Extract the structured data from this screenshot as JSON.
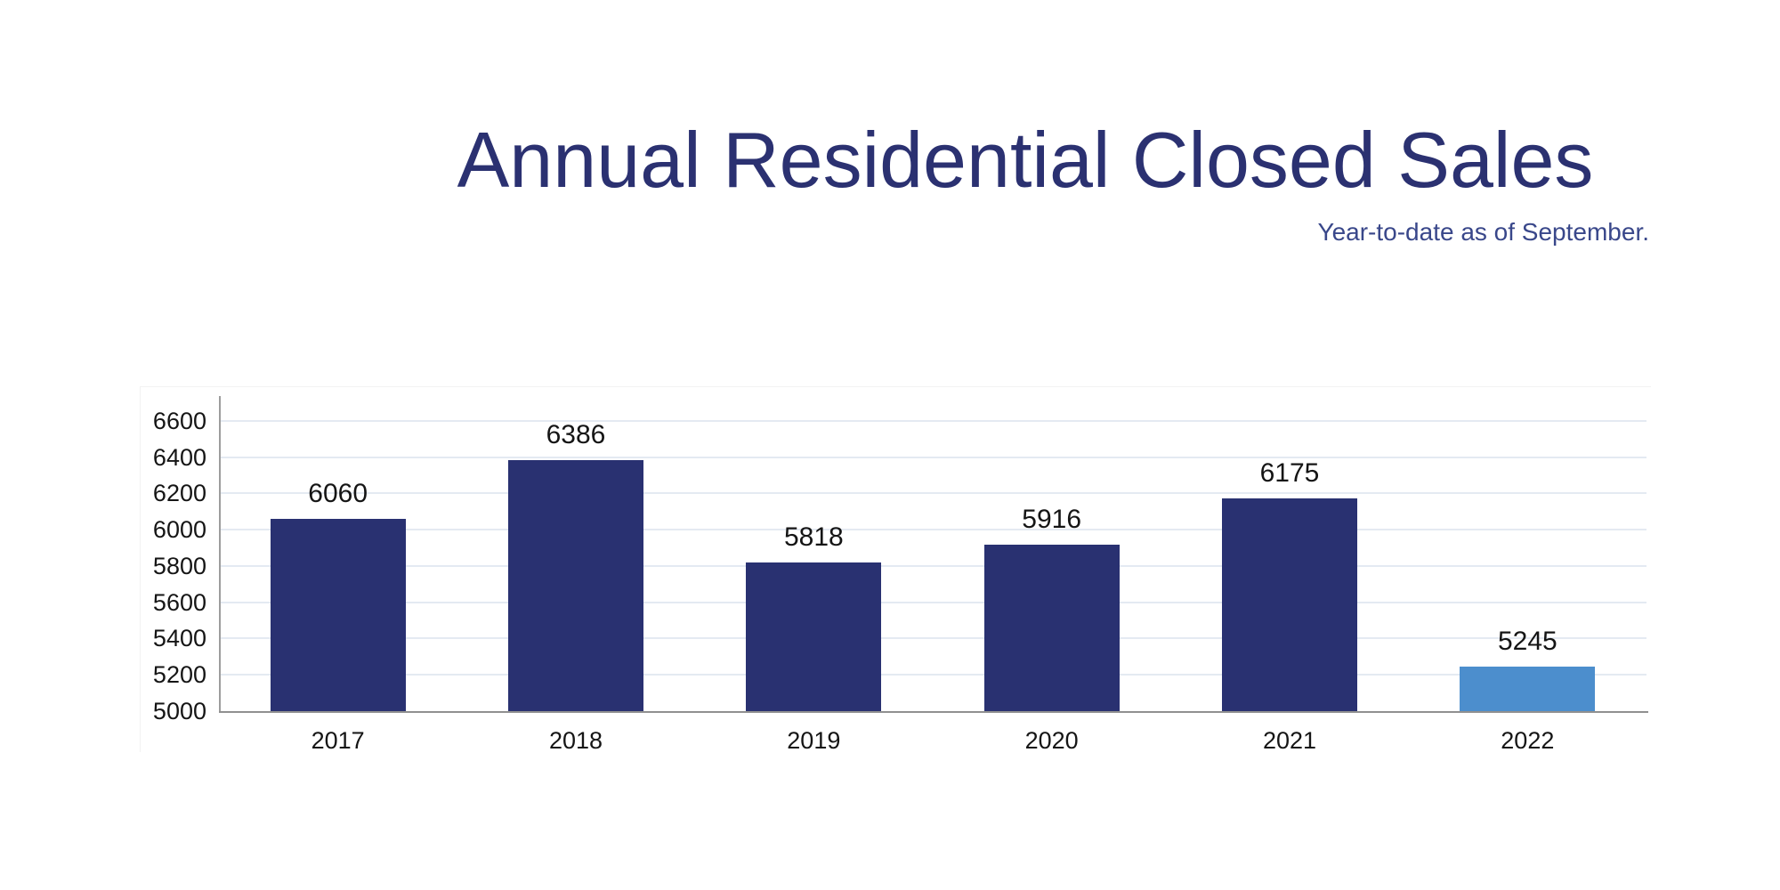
{
  "page": {
    "title": "Annual Residential Closed Sales",
    "subtitle": "Year-to-date as of September."
  },
  "colors": {
    "title": "#2b3171",
    "subtitle": "#39478a",
    "bar": "#293171",
    "bar_highlight": "#4c8ecd",
    "gridline": "#e4eaf2",
    "axis": "#909090",
    "label": "#151515"
  },
  "chart_data": {
    "type": "bar",
    "title": "Annual Residential Closed Sales",
    "subtitle": "Year-to-date as of September.",
    "categories": [
      "2017",
      "2018",
      "2019",
      "2020",
      "2021",
      "2022"
    ],
    "values": [
      6060,
      6386,
      5818,
      5916,
      6175,
      5245
    ],
    "value_labels": [
      "6060",
      "6386",
      "5818",
      "5916",
      "6175",
      "5245"
    ],
    "highlight_index": 5,
    "yticks": [
      5000,
      5200,
      5400,
      5600,
      5800,
      6000,
      6200,
      6400,
      6600
    ],
    "ylim": [
      5000,
      6737
    ],
    "xlabel": "",
    "ylabel": "",
    "grid": true,
    "legend": false
  }
}
